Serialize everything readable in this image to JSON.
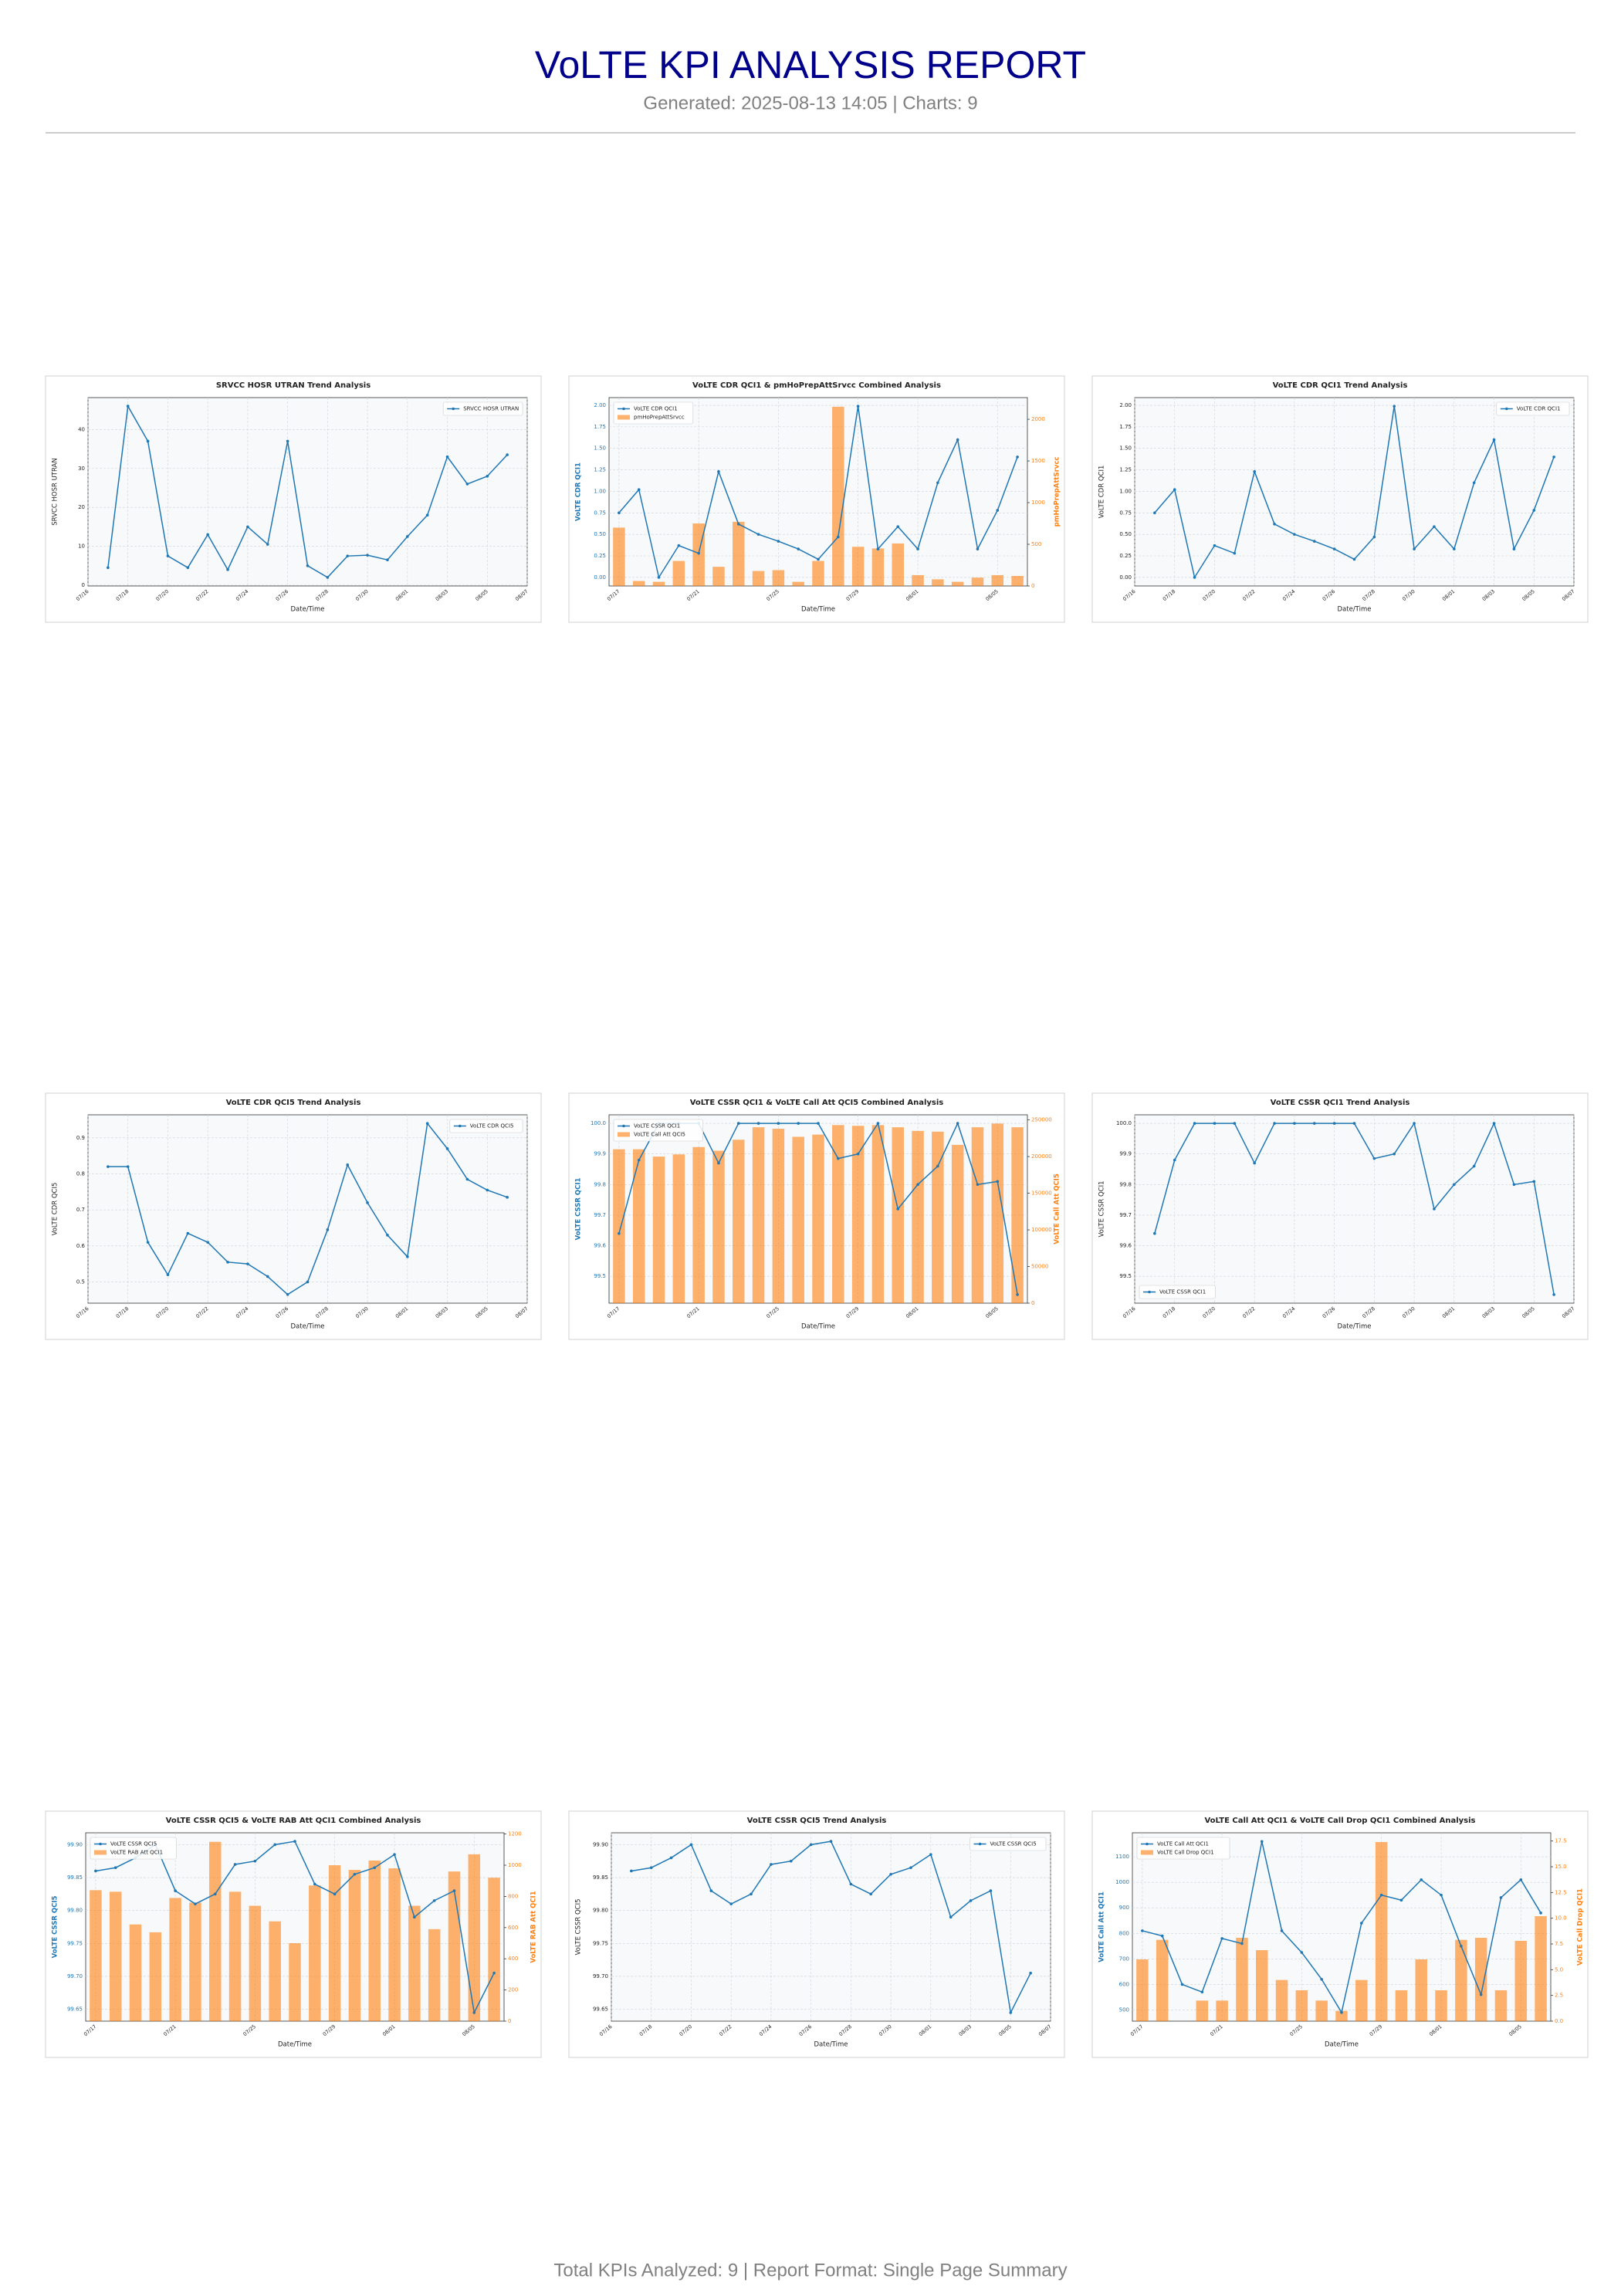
{
  "header": {
    "title": "VoLTE KPI ANALYSIS REPORT",
    "subtitle": "Generated: 2025-08-13 14:05 | Charts: 9"
  },
  "footer": "Total KPIs Analyzed: 9 | Report Format: Single Page Summary",
  "chart_data": [
    {
      "type": "line",
      "title": "SRVCC HOSR UTRAN Trend Analysis",
      "x_label": "Date/Time",
      "y_label": "SRVCC HOSR UTRAN",
      "x": [
        "07/17",
        "07/18",
        "07/19",
        "07/20",
        "07/21",
        "07/22",
        "07/23",
        "07/24",
        "07/25",
        "07/26",
        "07/27",
        "07/28",
        "07/29",
        "07/30",
        "07/31",
        "08/01",
        "08/02",
        "08/03",
        "08/04",
        "08/05",
        "08/06"
      ],
      "xlim": [
        "07/16",
        "08/07"
      ],
      "xticks": [
        "07/16",
        "07/18",
        "07/20",
        "07/22",
        "07/24",
        "07/26",
        "07/28",
        "07/30",
        "08/01",
        "08/03",
        "08/05",
        "08/07"
      ],
      "ylim": [
        -0.2,
        48.2
      ],
      "yticks": [
        0,
        10,
        20,
        30,
        40
      ],
      "series": [
        {
          "name": "SRVCC HOSR UTRAN",
          "color": "#1f77b4",
          "values": [
            4.5,
            46,
            37,
            7.5,
            4.5,
            13,
            4,
            15,
            10.5,
            37,
            5,
            2,
            7.5,
            7.7,
            6.5,
            12.5,
            18,
            33,
            26,
            28,
            33.5
          ]
        }
      ],
      "legend": "upper right",
      "grid": true
    },
    {
      "type": "combo",
      "title": "VoLTE CDR QCI1 & pmHoPrepAttSrvcc Combined Analysis",
      "x_label": "Date/Time",
      "y_label": "VoLTE CDR QCI1",
      "y2_label": "pmHoPrepAttSrvcc",
      "categories": [
        "07/17",
        "07/18",
        "07/19",
        "07/20",
        "07/21",
        "07/22",
        "07/23",
        "07/24",
        "07/25",
        "07/26",
        "07/27",
        "07/28",
        "07/29",
        "07/30",
        "07/31",
        "08/01",
        "08/02",
        "08/03",
        "08/04",
        "08/05",
        "08/06"
      ],
      "xticks": [
        "07/17",
        "07/21",
        "07/25",
        "07/29",
        "08/01",
        "08/05"
      ],
      "ylim": [
        -0.1,
        2.09
      ],
      "yticks": [
        {
          "value": 0,
          "label": "0.00"
        },
        0.25,
        {
          "value": 0.5,
          "label": "0.50"
        },
        0.75,
        {
          "value": 1,
          "label": "1.00"
        },
        1.25,
        {
          "value": 1.5,
          "label": "1.50"
        },
        1.75,
        {
          "value": 2,
          "label": "2.00"
        }
      ],
      "y2lim": [
        0,
        2260
      ],
      "y2ticks": [
        0,
        500,
        1000,
        1500,
        2000
      ],
      "series": [
        {
          "name": "VoLTE CDR QCI1",
          "kind": "line",
          "color": "#1f77b4",
          "values": [
            0.75,
            1.02,
            0.0,
            0.37,
            0.28,
            1.23,
            0.62,
            0.5,
            0.42,
            0.33,
            0.21,
            0.47,
            1.99,
            0.33,
            0.59,
            0.33,
            1.1,
            1.6,
            0.33,
            0.78,
            1.4
          ]
        },
        {
          "name": "pmHoPrepAttSrvcc",
          "kind": "bar",
          "axis": "y2",
          "color": "#ff7f0e",
          "values": [
            700,
            60,
            50,
            300,
            750,
            230,
            770,
            180,
            190,
            50,
            300,
            2150,
            470,
            450,
            510,
            130,
            80,
            50,
            100,
            130,
            120
          ]
        }
      ],
      "legend": "upper left",
      "grid": true
    },
    {
      "type": "line",
      "title": "VoLTE CDR QCI1 Trend Analysis",
      "x_label": "Date/Time",
      "y_label": "VoLTE CDR QCI1",
      "x": [
        "07/17",
        "07/18",
        "07/19",
        "07/20",
        "07/21",
        "07/22",
        "07/23",
        "07/24",
        "07/25",
        "07/26",
        "07/27",
        "07/28",
        "07/29",
        "07/30",
        "07/31",
        "08/01",
        "08/02",
        "08/03",
        "08/04",
        "08/05",
        "08/06"
      ],
      "xlim": [
        "07/16",
        "08/07"
      ],
      "xticks": [
        "07/16",
        "07/18",
        "07/20",
        "07/22",
        "07/24",
        "07/26",
        "07/28",
        "07/30",
        "08/01",
        "08/03",
        "08/05",
        "08/07"
      ],
      "ylim": [
        -0.1,
        2.09
      ],
      "yticks": [
        {
          "value": 0,
          "label": "0.00"
        },
        0.25,
        {
          "value": 0.5,
          "label": "0.50"
        },
        0.75,
        {
          "value": 1,
          "label": "1.00"
        },
        1.25,
        {
          "value": 1.5,
          "label": "1.50"
        },
        1.75,
        {
          "value": 2,
          "label": "2.00"
        }
      ],
      "series": [
        {
          "name": "VoLTE CDR QCI1",
          "color": "#1f77b4",
          "values": [
            0.75,
            1.02,
            0.0,
            0.37,
            0.28,
            1.23,
            0.62,
            0.5,
            0.42,
            0.33,
            0.21,
            0.47,
            1.99,
            0.33,
            0.59,
            0.33,
            1.1,
            1.6,
            0.33,
            0.78,
            1.4
          ]
        }
      ],
      "legend": "upper right",
      "grid": true
    },
    {
      "type": "line",
      "title": "VoLTE CDR QCI5 Trend Analysis",
      "x_label": "Date/Time",
      "y_label": "VoLTE CDR QCI5",
      "x": [
        "07/17",
        "07/18",
        "07/19",
        "07/20",
        "07/21",
        "07/22",
        "07/23",
        "07/24",
        "07/25",
        "07/26",
        "07/27",
        "07/28",
        "07/29",
        "07/30",
        "07/31",
        "08/01",
        "08/02",
        "08/03",
        "08/04",
        "08/05",
        "08/06"
      ],
      "xlim": [
        "07/16",
        "08/07"
      ],
      "xticks": [
        "07/16",
        "07/18",
        "07/20",
        "07/22",
        "07/24",
        "07/26",
        "07/28",
        "07/30",
        "08/01",
        "08/03",
        "08/05",
        "08/07"
      ],
      "ylim": [
        0.441,
        0.964
      ],
      "yticks": [
        0.5,
        0.6,
        0.7,
        0.8,
        0.9
      ],
      "series": [
        {
          "name": "VoLTE CDR QCI5",
          "color": "#1f77b4",
          "values": [
            0.82,
            0.82,
            0.61,
            0.52,
            0.635,
            0.61,
            0.555,
            0.55,
            0.515,
            0.465,
            0.5,
            0.645,
            0.825,
            0.72,
            0.63,
            0.57,
            0.94,
            0.87,
            0.785,
            0.755,
            0.735
          ]
        }
      ],
      "legend": "upper right",
      "grid": true
    },
    {
      "type": "combo",
      "title": "VoLTE CSSR QCI1 & VoLTE Call Att QCI5 Combined Analysis",
      "x_label": "Date/Time",
      "y_label": "VoLTE CSSR QCI1",
      "y2_label": "VoLTE Call Att QCI5",
      "categories": [
        "07/17",
        "07/18",
        "07/19",
        "07/20",
        "07/21",
        "07/22",
        "07/23",
        "07/24",
        "07/25",
        "07/26",
        "07/27",
        "07/28",
        "07/29",
        "07/30",
        "07/31",
        "08/01",
        "08/02",
        "08/03",
        "08/04",
        "08/05",
        "08/06"
      ],
      "xticks": [
        "07/17",
        "07/21",
        "07/25",
        "07/29",
        "08/01",
        "08/05"
      ],
      "ylim": [
        99.412,
        100.028
      ],
      "yticks": [
        99.5,
        99.6,
        99.7,
        99.8,
        99.9,
        {
          "value": 100,
          "label": "100.0"
        }
      ],
      "y2lim": [
        0,
        257000
      ],
      "y2ticks": [
        0,
        50000,
        100000,
        150000,
        200000,
        250000
      ],
      "series": [
        {
          "name": "VoLTE CSSR QCI1",
          "kind": "line",
          "color": "#1f77b4",
          "values": [
            99.64,
            99.88,
            100,
            100,
            100,
            99.87,
            100,
            100,
            100,
            100,
            100,
            99.885,
            99.9,
            100,
            99.72,
            99.8,
            99.86,
            100,
            99.8,
            99.81,
            99.44
          ]
        },
        {
          "name": "VoLTE Call Att QCI5",
          "kind": "bar",
          "axis": "y2",
          "color": "#ff7f0e",
          "values": [
            210000,
            210000,
            200000,
            203000,
            213000,
            208000,
            223000,
            240000,
            238000,
            227000,
            230000,
            243000,
            242000,
            243000,
            240000,
            235000,
            234000,
            216000,
            240000,
            245000,
            240000
          ]
        }
      ],
      "legend": "upper left",
      "grid": true
    },
    {
      "type": "line",
      "title": "VoLTE CSSR QCI1 Trend Analysis",
      "x_label": "Date/Time",
      "y_label": "VoLTE CSSR QCI1",
      "x": [
        "07/17",
        "07/18",
        "07/19",
        "07/20",
        "07/21",
        "07/22",
        "07/23",
        "07/24",
        "07/25",
        "07/26",
        "07/27",
        "07/28",
        "07/29",
        "07/30",
        "07/31",
        "08/01",
        "08/02",
        "08/03",
        "08/04",
        "08/05",
        "08/06"
      ],
      "xlim": [
        "07/16",
        "08/07"
      ],
      "xticks": [
        "07/16",
        "07/18",
        "07/20",
        "07/22",
        "07/24",
        "07/26",
        "07/28",
        "07/30",
        "08/01",
        "08/03",
        "08/05",
        "08/07"
      ],
      "ylim": [
        99.412,
        100.028
      ],
      "yticks": [
        99.5,
        99.6,
        99.7,
        99.8,
        99.9,
        {
          "value": 100,
          "label": "100.0"
        }
      ],
      "series": [
        {
          "name": "VoLTE CSSR QCI1",
          "color": "#1f77b4",
          "values": [
            99.64,
            99.88,
            100,
            100,
            100,
            99.87,
            100,
            100,
            100,
            100,
            100,
            99.885,
            99.9,
            100,
            99.72,
            99.8,
            99.86,
            100,
            99.8,
            99.81,
            99.44
          ]
        }
      ],
      "legend": "lower left",
      "grid": true
    },
    {
      "type": "combo",
      "title": "VoLTE CSSR QCI5 & VoLTE RAB Att QCI1 Combined Analysis",
      "x_label": "Date/Time",
      "y_label": "VoLTE CSSR QCI5",
      "y2_label": "VoLTE RAB Att QCI1",
      "categories": [
        "07/17",
        "07/18",
        "07/19",
        "07/20",
        "07/21",
        "07/22",
        "07/23",
        "07/24",
        "07/25",
        "07/26",
        "07/27",
        "07/28",
        "07/29",
        "07/30",
        "07/31",
        "08/01",
        "08/02",
        "08/03",
        "08/04",
        "08/05",
        "08/06"
      ],
      "xticks": [
        "07/17",
        "07/21",
        "07/25",
        "07/29",
        "08/01",
        "08/05"
      ],
      "ylim": [
        99.632,
        99.918
      ],
      "yticks": [
        99.65,
        {
          "value": 99.7,
          "label": "99.70"
        },
        99.75,
        {
          "value": 99.8,
          "label": "99.80"
        },
        99.85,
        {
          "value": 99.9,
          "label": "99.90"
        }
      ],
      "y2lim": [
        0,
        1208
      ],
      "y2ticks": [
        0,
        200,
        400,
        600,
        800,
        1000,
        1200
      ],
      "series": [
        {
          "name": "VoLTE CSSR QCI5",
          "kind": "line",
          "color": "#1f77b4",
          "values": [
            99.86,
            99.865,
            99.88,
            99.9,
            99.83,
            99.81,
            99.825,
            99.87,
            99.875,
            99.9,
            99.905,
            99.84,
            99.825,
            99.855,
            99.865,
            99.885,
            99.79,
            99.815,
            99.83,
            99.645,
            99.705
          ]
        },
        {
          "name": "VoLTE RAB Att QCI1",
          "kind": "bar",
          "axis": "y2",
          "color": "#ff7f0e",
          "values": [
            840,
            830,
            620,
            570,
            790,
            760,
            1150,
            830,
            740,
            640,
            500,
            870,
            1000,
            970,
            1030,
            980,
            740,
            590,
            960,
            1070,
            920
          ]
        }
      ],
      "legend": "upper left",
      "grid": true
    },
    {
      "type": "line",
      "title": "VoLTE CSSR QCI5 Trend Analysis",
      "x_label": "Date/Time",
      "y_label": "VoLTE CSSR QCI5",
      "x": [
        "07/17",
        "07/18",
        "07/19",
        "07/20",
        "07/21",
        "07/22",
        "07/23",
        "07/24",
        "07/25",
        "07/26",
        "07/27",
        "07/28",
        "07/29",
        "07/30",
        "07/31",
        "08/01",
        "08/02",
        "08/03",
        "08/04",
        "08/05",
        "08/06"
      ],
      "xlim": [
        "07/16",
        "08/07"
      ],
      "xticks": [
        "07/16",
        "07/18",
        "07/20",
        "07/22",
        "07/24",
        "07/26",
        "07/28",
        "07/30",
        "08/01",
        "08/03",
        "08/05",
        "08/07"
      ],
      "ylim": [
        99.632,
        99.918
      ],
      "yticks": [
        99.65,
        {
          "value": 99.7,
          "label": "99.70"
        },
        99.75,
        {
          "value": 99.8,
          "label": "99.80"
        },
        99.85,
        {
          "value": 99.9,
          "label": "99.90"
        }
      ],
      "series": [
        {
          "name": "VoLTE CSSR QCI5",
          "color": "#1f77b4",
          "values": [
            99.86,
            99.865,
            99.88,
            99.9,
            99.83,
            99.81,
            99.825,
            99.87,
            99.875,
            99.9,
            99.905,
            99.84,
            99.825,
            99.855,
            99.865,
            99.885,
            99.79,
            99.815,
            99.83,
            99.645,
            99.705
          ]
        }
      ],
      "legend": "upper right",
      "grid": true
    },
    {
      "type": "combo",
      "title": "VoLTE Call Att QCI1 & VoLTE Call Drop QCI1 Combined Analysis",
      "x_label": "Date/Time",
      "y_label": "VoLTE Call Att QCI1",
      "y2_label": "VoLTE Call Drop QCI1",
      "categories": [
        "07/17",
        "07/18",
        "07/19",
        "07/20",
        "07/21",
        "07/22",
        "07/23",
        "07/24",
        "07/25",
        "07/26",
        "07/27",
        "07/28",
        "07/29",
        "07/30",
        "07/31",
        "08/01",
        "08/02",
        "08/03",
        "08/04",
        "08/05",
        "08/06"
      ],
      "xticks": [
        "07/17",
        "07/21",
        "07/25",
        "07/29",
        "08/01",
        "08/05"
      ],
      "ylim": [
        456,
        1194
      ],
      "yticks": [
        500,
        600,
        700,
        800,
        900,
        1000,
        1100
      ],
      "y2lim": [
        0,
        18.3
      ],
      "y2ticks": [
        {
          "value": 0,
          "label": "0.0"
        },
        2.5,
        {
          "value": 5,
          "label": "5.0"
        },
        7.5,
        {
          "value": 10,
          "label": "10.0"
        },
        12.5,
        {
          "value": 15,
          "label": "15.0"
        },
        17.5
      ],
      "series": [
        {
          "name": "VoLTE Call Att QCI1",
          "kind": "line",
          "color": "#1f77b4",
          "values": [
            810,
            790,
            600,
            570,
            780,
            760,
            1160,
            810,
            725,
            620,
            490,
            840,
            950,
            930,
            1010,
            950,
            750,
            560,
            940,
            1010,
            880
          ]
        },
        {
          "name": "VoLTE Call Drop QCI1",
          "kind": "bar",
          "axis": "y2",
          "color": "#ff7f0e",
          "values": [
            6,
            7.9,
            0,
            2,
            2,
            8.1,
            6.9,
            4,
            3,
            2,
            1,
            4,
            17.4,
            3,
            6,
            3,
            7.9,
            8.1,
            3,
            7.8,
            10.2
          ]
        }
      ],
      "legend": "upper left",
      "grid": true
    }
  ]
}
